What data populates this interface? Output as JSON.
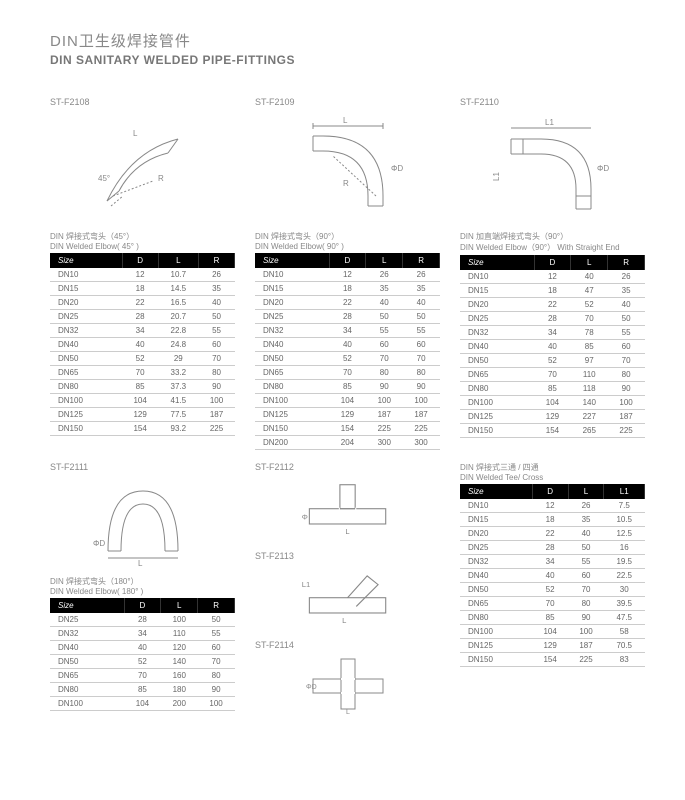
{
  "title_cn": "DIN卫生级焊接管件",
  "title_en": "DIN SANITARY WELDED PIPE-FITTINGS",
  "colors": {
    "header_bg": "#000000",
    "header_fg": "#ffffff",
    "text": "#666666",
    "border": "#cccccc",
    "line": "#888888"
  },
  "sections": [
    {
      "code": "ST-F2108",
      "diagram": "elbow45",
      "desc_cn": "DIN 焊接式弯头（45°）",
      "desc_en": "DIN Welded Elbow( 45° )",
      "columns": [
        "Size",
        "D",
        "L",
        "R"
      ],
      "rows": [
        [
          "DN10",
          "12",
          "10.7",
          "26"
        ],
        [
          "DN15",
          "18",
          "14.5",
          "35"
        ],
        [
          "DN20",
          "22",
          "16.5",
          "40"
        ],
        [
          "DN25",
          "28",
          "20.7",
          "50"
        ],
        [
          "DN32",
          "34",
          "22.8",
          "55"
        ],
        [
          "DN40",
          "40",
          "24.8",
          "60"
        ],
        [
          "DN50",
          "52",
          "29",
          "70"
        ],
        [
          "DN65",
          "70",
          "33.2",
          "80"
        ],
        [
          "DN80",
          "85",
          "37.3",
          "90"
        ],
        [
          "DN100",
          "104",
          "41.5",
          "100"
        ],
        [
          "DN125",
          "129",
          "77.5",
          "187"
        ],
        [
          "DN150",
          "154",
          "93.2",
          "225"
        ]
      ]
    },
    {
      "code": "ST-F2109",
      "diagram": "elbow90",
      "desc_cn": "DIN 焊接式弯头（90°）",
      "desc_en": "DIN Welded Elbow( 90° )",
      "columns": [
        "Size",
        "D",
        "L",
        "R"
      ],
      "rows": [
        [
          "DN10",
          "12",
          "26",
          "26"
        ],
        [
          "DN15",
          "18",
          "35",
          "35"
        ],
        [
          "DN20",
          "22",
          "40",
          "40"
        ],
        [
          "DN25",
          "28",
          "50",
          "50"
        ],
        [
          "DN32",
          "34",
          "55",
          "55"
        ],
        [
          "DN40",
          "40",
          "60",
          "60"
        ],
        [
          "DN50",
          "52",
          "70",
          "70"
        ],
        [
          "DN65",
          "70",
          "80",
          "80"
        ],
        [
          "DN80",
          "85",
          "90",
          "90"
        ],
        [
          "DN100",
          "104",
          "100",
          "100"
        ],
        [
          "DN125",
          "129",
          "187",
          "187"
        ],
        [
          "DN150",
          "154",
          "225",
          "225"
        ],
        [
          "DN200",
          "204",
          "300",
          "300"
        ]
      ]
    },
    {
      "code": "ST-F2110",
      "diagram": "elbow90s",
      "desc_cn": "DIN 加直端焊接式弯头（90°）",
      "desc_en": "DIN Welded Elbow（90°） With Straight End",
      "columns": [
        "Size",
        "D",
        "L",
        "R"
      ],
      "rows": [
        [
          "DN10",
          "12",
          "40",
          "26"
        ],
        [
          "DN15",
          "18",
          "47",
          "35"
        ],
        [
          "DN20",
          "22",
          "52",
          "40"
        ],
        [
          "DN25",
          "28",
          "70",
          "50"
        ],
        [
          "DN32",
          "34",
          "78",
          "55"
        ],
        [
          "DN40",
          "40",
          "85",
          "60"
        ],
        [
          "DN50",
          "52",
          "97",
          "70"
        ],
        [
          "DN65",
          "70",
          "110",
          "80"
        ],
        [
          "DN80",
          "85",
          "118",
          "90"
        ],
        [
          "DN100",
          "104",
          "140",
          "100"
        ],
        [
          "DN125",
          "129",
          "227",
          "187"
        ],
        [
          "DN150",
          "154",
          "265",
          "225"
        ]
      ]
    },
    {
      "code": "ST-F2111",
      "diagram": "elbow180",
      "desc_cn": "DIN 焊接式弯头（180°）",
      "desc_en": "DIN Welded Elbow( 180° )",
      "columns": [
        "Size",
        "D",
        "L",
        "R"
      ],
      "rows": [
        [
          "DN25",
          "28",
          "100",
          "50"
        ],
        [
          "DN32",
          "34",
          "110",
          "55"
        ],
        [
          "DN40",
          "40",
          "120",
          "60"
        ],
        [
          "DN50",
          "52",
          "140",
          "70"
        ],
        [
          "DN65",
          "70",
          "160",
          "80"
        ],
        [
          "DN80",
          "85",
          "180",
          "90"
        ],
        [
          "DN100",
          "104",
          "200",
          "100"
        ]
      ]
    },
    {
      "code_list": [
        "ST-F2112",
        "ST-F2113",
        "ST-F2114"
      ],
      "diagrams": [
        "tee",
        "ytee",
        "cross"
      ]
    },
    {
      "desc_cn": "DIN 焊接式三通 / 四通",
      "desc_en": "DIN Welded Tee/ Cross",
      "columns": [
        "Size",
        "D",
        "L",
        "L1"
      ],
      "rows": [
        [
          "DN10",
          "12",
          "26",
          "7.5"
        ],
        [
          "DN15",
          "18",
          "35",
          "10.5"
        ],
        [
          "DN20",
          "22",
          "40",
          "12.5"
        ],
        [
          "DN25",
          "28",
          "50",
          "16"
        ],
        [
          "DN32",
          "34",
          "55",
          "19.5"
        ],
        [
          "DN40",
          "40",
          "60",
          "22.5"
        ],
        [
          "DN50",
          "52",
          "70",
          "30"
        ],
        [
          "DN65",
          "70",
          "80",
          "39.5"
        ],
        [
          "DN80",
          "85",
          "90",
          "47.5"
        ],
        [
          "DN100",
          "104",
          "100",
          "58"
        ],
        [
          "DN125",
          "129",
          "187",
          "70.5"
        ],
        [
          "DN150",
          "154",
          "225",
          "83"
        ]
      ]
    }
  ]
}
